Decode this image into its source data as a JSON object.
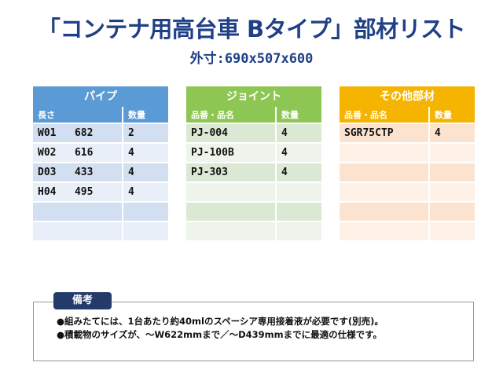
{
  "title": "「コンテナ用高台車 Bタイプ」部材リスト",
  "subtitle": "外寸:690x507x600",
  "panels": [
    {
      "header": "パイプ",
      "col1": "長さ",
      "col2": "数量",
      "rows": [
        [
          "W01   682",
          "2"
        ],
        [
          "W02   616",
          "4"
        ],
        [
          "D03   433",
          "4"
        ],
        [
          "H04   495",
          "4"
        ],
        [
          "",
          ""
        ],
        [
          "",
          ""
        ]
      ]
    },
    {
      "header": "ジョイント",
      "col1": "品番・品名",
      "col2": "数量",
      "rows": [
        [
          "PJ-004",
          "4"
        ],
        [
          "PJ-100B",
          "4"
        ],
        [
          "PJ-303",
          "4"
        ],
        [
          "",
          ""
        ],
        [
          "",
          ""
        ],
        [
          "",
          ""
        ]
      ]
    },
    {
      "header": "その他部材",
      "col1": "品番・品名",
      "col2": "数量",
      "rows": [
        [
          "SGR75CTP",
          "4"
        ],
        [
          "",
          ""
        ],
        [
          "",
          ""
        ],
        [
          "",
          ""
        ],
        [
          "",
          ""
        ],
        [
          "",
          ""
        ]
      ]
    }
  ],
  "notes": {
    "label": "備考",
    "lines": [
      "●組みたてには、1台あたり約40mlのスペーシア専用接着液が必要です(別売)。",
      "●積載物のサイズが、～W622mmまで／～D439mmまでに最適の仕様です。"
    ]
  }
}
